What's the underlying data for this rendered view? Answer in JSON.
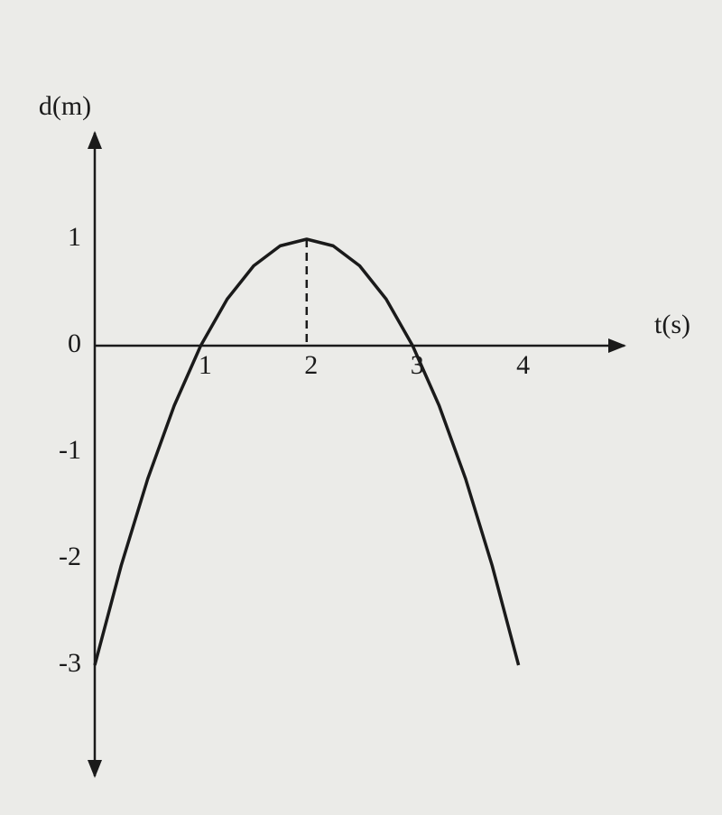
{
  "chart_data": {
    "type": "line",
    "y_label": "d(m)",
    "x_label": "t(s)",
    "x": [
      0,
      0.25,
      0.5,
      0.75,
      1,
      1.25,
      1.5,
      1.75,
      2,
      2.25,
      2.5,
      2.75,
      3,
      3.25,
      3.5,
      3.75,
      4
    ],
    "series": [
      {
        "color": "#1a1a1a",
        "values": [
          -3,
          -2.0625,
          -1.25,
          -0.5625,
          0,
          0.4375,
          0.75,
          0.9375,
          1,
          0.9375,
          0.75,
          0.4375,
          0,
          -0.5625,
          -1.25,
          -2.0625,
          -3
        ]
      }
    ],
    "xlim": [
      0,
      5
    ],
    "ylim": [
      -4,
      2
    ],
    "xticks": [
      1,
      2,
      3,
      4
    ],
    "yticks": [
      -3,
      -2,
      -1,
      0,
      1
    ],
    "grid": false
  }
}
